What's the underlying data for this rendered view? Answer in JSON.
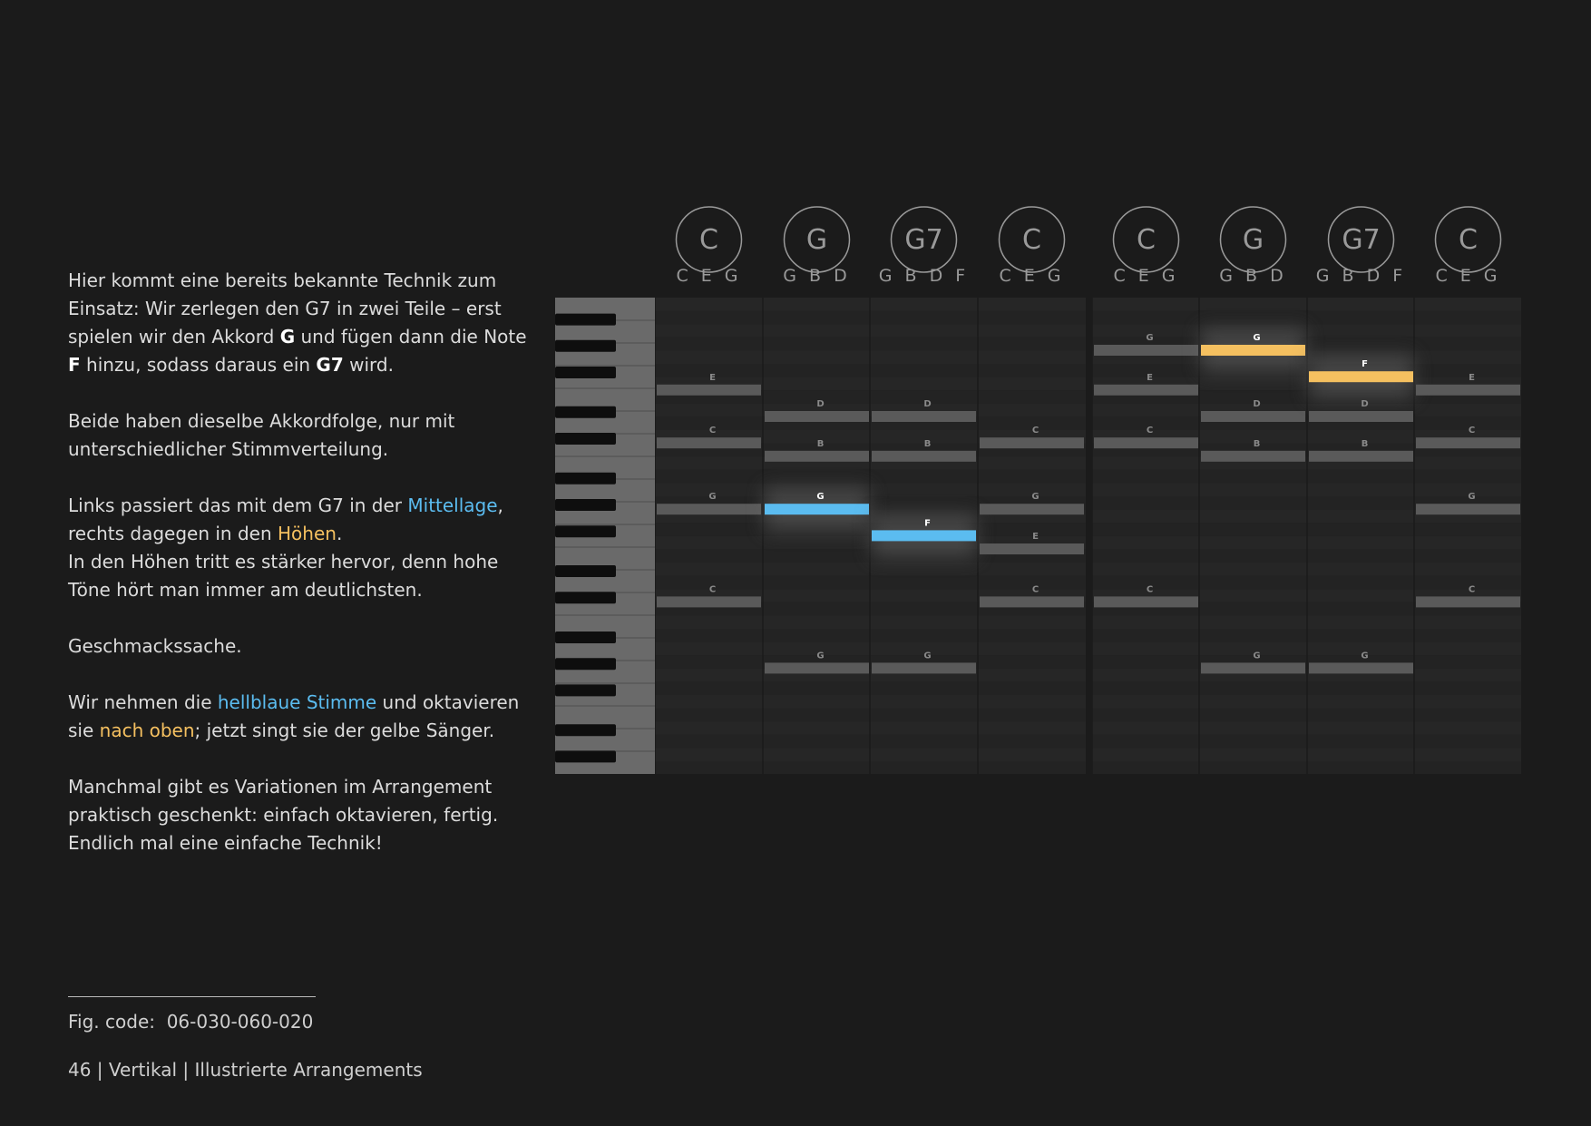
{
  "paragraphs": [
    [
      [
        {
          "text": "Hier kommt eine bereits bekannte Technik zum Einsatz: Wir zerlegen den G7 in zwei Teile – erst spielen wir den Akkord ",
          "style": "plain"
        },
        {
          "text": "G",
          "style": "bold"
        },
        {
          "text": " und fügen dann die Note ",
          "style": "plain"
        },
        {
          "text": "F",
          "style": "bold"
        },
        {
          "text": " hinzu, sodass daraus ein ",
          "style": "plain"
        },
        {
          "text": "G7",
          "style": "bold"
        },
        {
          "text": " wird.",
          "style": "plain"
        }
      ]
    ],
    [
      [
        {
          "text": "Beide haben dieselbe Akkordfolge, nur mit unterschiedlicher Stimmverteilung.",
          "style": "plain"
        }
      ]
    ],
    [
      [
        {
          "text": "Links passiert das mit dem G7 in der ",
          "style": "plain"
        },
        {
          "text": "Mittellage",
          "style": "blue"
        },
        {
          "text": ", rechts dagegen in den ",
          "style": "plain"
        },
        {
          "text": "Höhen",
          "style": "yellow"
        },
        {
          "text": ".",
          "style": "plain"
        }
      ],
      [
        {
          "text": "In den Höhen tritt es stärker hervor, denn hohe Töne hört man immer am deutlichsten.",
          "style": "plain"
        }
      ]
    ],
    [
      [
        {
          "text": "Geschmackssache.",
          "style": "plain"
        }
      ]
    ],
    [
      [
        {
          "text": "Wir nehmen die ",
          "style": "plain"
        },
        {
          "text": "hellblaue Stimme",
          "style": "blue"
        },
        {
          "text": " und oktavieren sie ",
          "style": "plain"
        },
        {
          "text": "nach oben",
          "style": "yellow"
        },
        {
          "text": "; jetzt singt sie der gelbe Sänger.",
          "style": "plain"
        }
      ]
    ],
    [
      [
        {
          "text": "Manchmal gibt es Variationen im Arrangement praktisch geschenkt: einfach oktavieren, fertig.",
          "style": "plain"
        }
      ],
      [
        {
          "text": "Endlich mal eine einfache Technik!",
          "style": "plain"
        }
      ]
    ]
  ],
  "chords": [
    {
      "name": "C",
      "notes": "C E G",
      "bars": [
        {
          "label": "E",
          "color": "#5a5a5a"
        },
        {
          "label": "C",
          "color": "#5a5a5a"
        },
        {
          "label": "G",
          "color": "#5a5a5a"
        },
        {
          "label": "C",
          "color": "#5a5a5a"
        }
      ]
    },
    {
      "name": "G",
      "notes": "G B D",
      "bars": [
        {
          "label": "D",
          "color": "#5a5a5a"
        },
        {
          "label": "B",
          "color": "#5a5a5a"
        },
        {
          "label": "G",
          "color": "#5bbcf0"
        },
        {
          "label": "G",
          "color": "#5a5a5a"
        }
      ]
    },
    {
      "name": "G7",
      "notes": "G B D F",
      "bars": [
        {
          "label": "D",
          "color": "#5a5a5a"
        },
        {
          "label": "B",
          "color": "#5a5a5a"
        },
        {
          "label": "F",
          "color": "#5bbcf0"
        },
        {
          "label": "G",
          "color": "#5a5a5a"
        }
      ]
    },
    {
      "name": "C",
      "notes": "C E G",
      "bars": [
        {
          "label": "C",
          "color": "#5a5a5a"
        },
        {
          "label": "G",
          "color": "#5a5a5a"
        },
        {
          "label": "E",
          "color": "#5a5a5a"
        },
        {
          "label": "C",
          "color": "#5a5a5a"
        }
      ]
    },
    {
      "name": "C",
      "notes": "C E G",
      "bars": [
        {
          "label": "G",
          "color": "#5a5a5a"
        },
        {
          "label": "E",
          "color": "#5a5a5a"
        },
        {
          "label": "C",
          "color": "#5a5a5a"
        },
        {
          "label": "C",
          "color": "#5a5a5a"
        }
      ]
    },
    {
      "name": "G",
      "notes": "G B D",
      "bars": [
        {
          "label": "G",
          "color": "#f5c060"
        },
        {
          "label": "D",
          "color": "#5a5a5a"
        },
        {
          "label": "B",
          "color": "#5a5a5a"
        },
        {
          "label": "G",
          "color": "#5a5a5a"
        }
      ]
    },
    {
      "name": "G7",
      "notes": "G B D F",
      "bars": [
        {
          "label": "F",
          "color": "#f5c060"
        },
        {
          "label": "D",
          "color": "#5a5a5a"
        },
        {
          "label": "B",
          "color": "#5a5a5a"
        },
        {
          "label": "G",
          "color": "#5a5a5a"
        }
      ]
    },
    {
      "name": "C",
      "notes": "C E G",
      "bars": [
        {
          "label": "E",
          "color": "#5a5a5a"
        },
        {
          "label": "C",
          "color": "#5a5a5a"
        },
        {
          "label": "G",
          "color": "#5a5a5a"
        },
        {
          "label": "C",
          "color": "#5a5a5a"
        }
      ]
    }
  ],
  "footer": {
    "fig_code": "Fig. code:  06-030-060-020",
    "page": "46 | Vertikal | Illustrierte Arrangements"
  }
}
